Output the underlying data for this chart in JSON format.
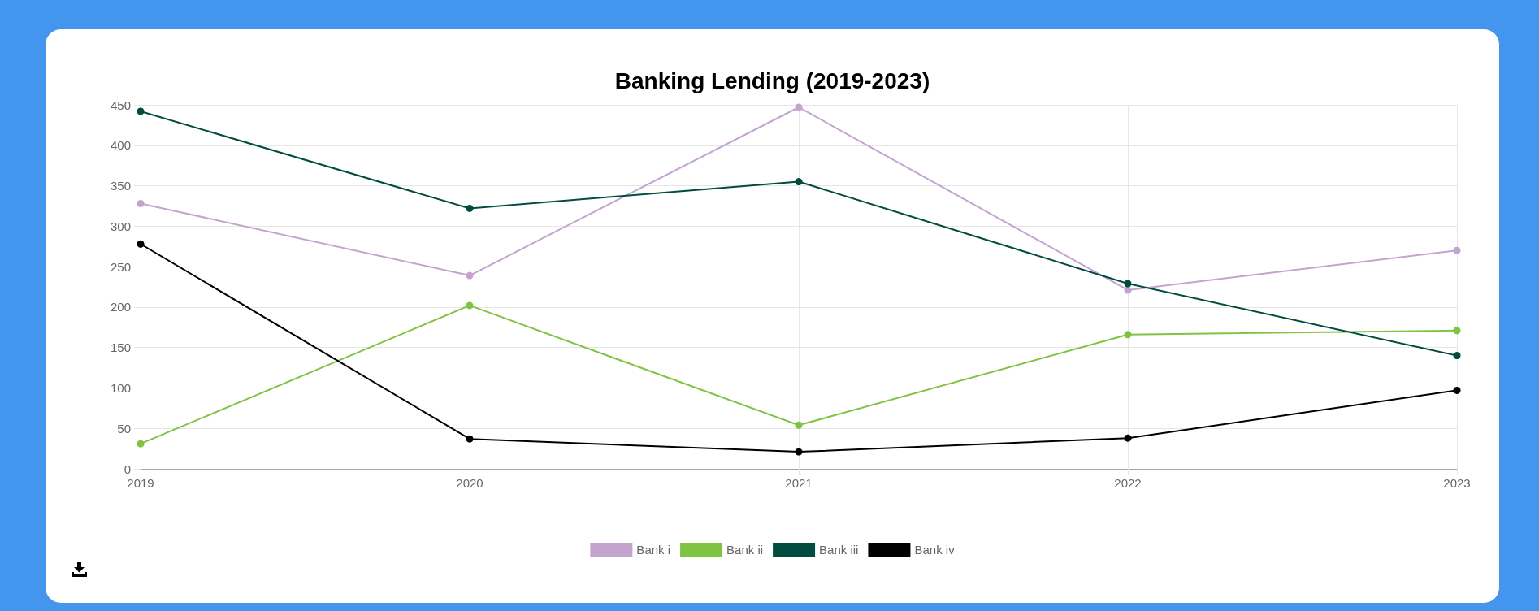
{
  "chart_data": {
    "type": "line",
    "title": "Banking Lending (2019-2023)",
    "categories": [
      "2019",
      "2020",
      "2021",
      "2022",
      "2023"
    ],
    "series": [
      {
        "name": "Bank i",
        "color": "#c3a4cf",
        "values": [
          328,
          239,
          447,
          221,
          270
        ]
      },
      {
        "name": "Bank ii",
        "color": "#80c342",
        "values": [
          31,
          202,
          54,
          166,
          171
        ]
      },
      {
        "name": "Bank iii",
        "color": "#004c40",
        "values": [
          442,
          322,
          355,
          229,
          140
        ]
      },
      {
        "name": "Bank iv",
        "color": "#000000",
        "values": [
          278,
          37,
          21,
          38,
          97
        ]
      }
    ],
    "ylim": [
      0,
      450
    ],
    "yticks": [
      0,
      50,
      100,
      150,
      200,
      250,
      300,
      350,
      400,
      450
    ],
    "grid": true,
    "legend": "bottom",
    "marker": "circle",
    "line_style": "solid"
  }
}
